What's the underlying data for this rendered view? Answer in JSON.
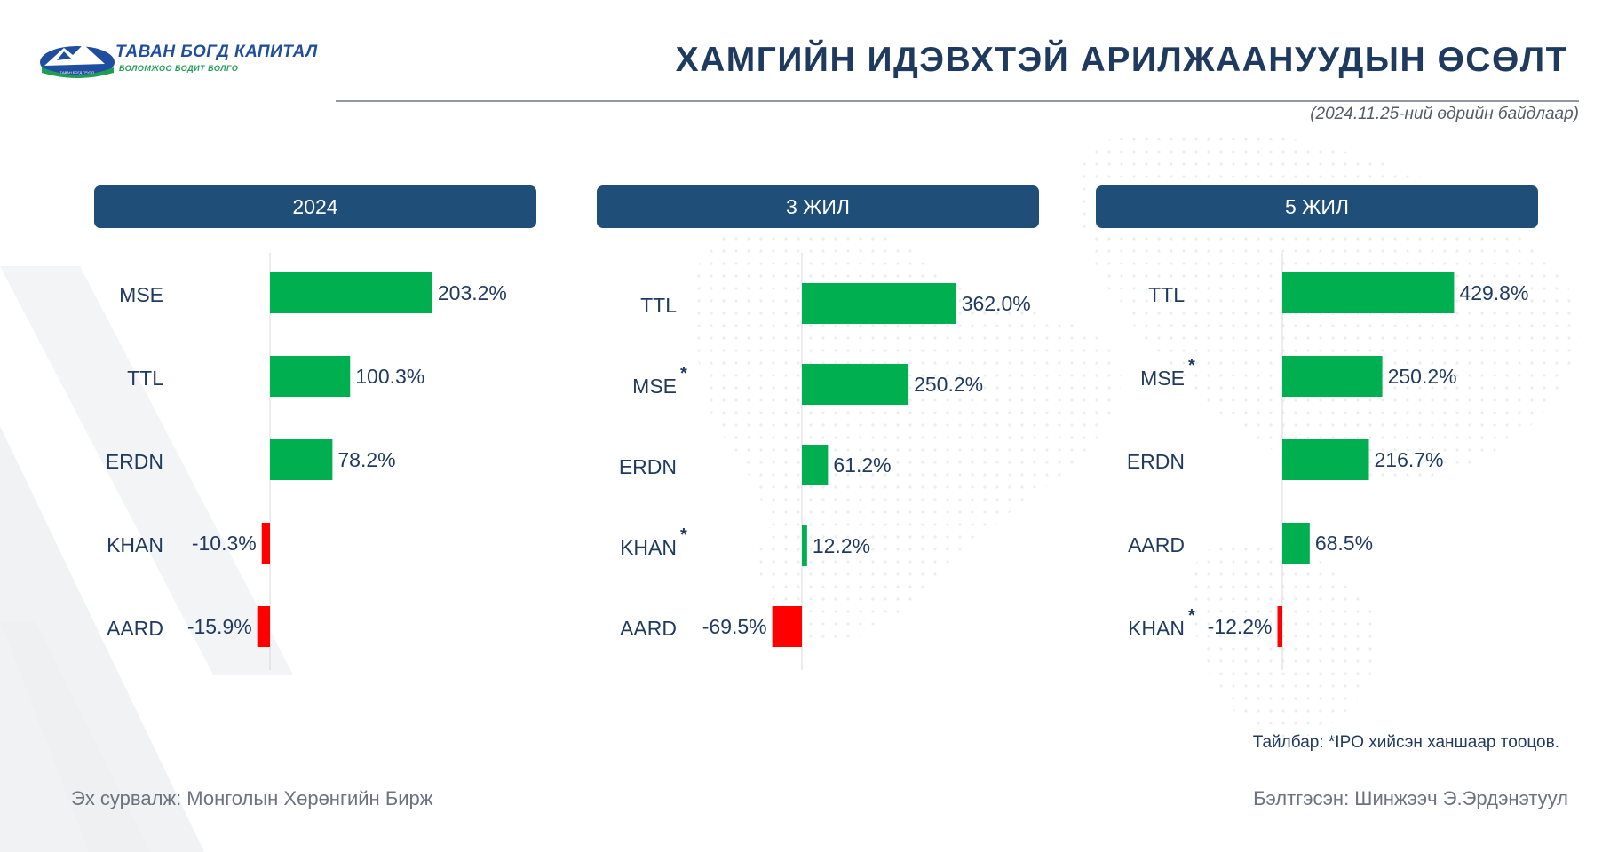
{
  "logo": {
    "brand": "ТАВАН БОГД КАПИТАЛ",
    "tagline": "БОЛОМЖОО БОДИТ БОЛГО",
    "mini_text": "ТАВАН БОГД ГРУПП"
  },
  "title": "ХАМГИЙН ИДЭВХТЭЙ АРИЛЖААНУУДЫН ӨСӨЛТ",
  "as_of": "(2024.11.25-ний өдрийн байдлаар)",
  "colors": {
    "positive": "#00b050",
    "negative": "#ff0000",
    "header": "#1f4e79",
    "text": "#1f3a5f"
  },
  "chart_data": [
    {
      "type": "bar",
      "title": "2024",
      "orientation": "horizontal",
      "categories": [
        "MSE",
        "TTL",
        "ERDN",
        "KHAN",
        "AARD"
      ],
      "asterisk": [
        false,
        false,
        false,
        false,
        false
      ],
      "values": [
        203.2,
        100.3,
        78.2,
        -10.3,
        -15.9
      ],
      "labels": [
        "203.2%",
        "100.3%",
        "78.2%",
        "-10.3%",
        "-15.9%"
      ],
      "unit": "%"
    },
    {
      "type": "bar",
      "title": "3 ЖИЛ",
      "orientation": "horizontal",
      "categories": [
        "TTL",
        "MSE",
        "ERDN",
        "KHAN",
        "AARD"
      ],
      "asterisk": [
        false,
        true,
        false,
        true,
        false
      ],
      "values": [
        362.0,
        250.2,
        61.2,
        12.2,
        -69.5
      ],
      "labels": [
        "362.0%",
        "250.2%",
        "61.2%",
        "12.2%",
        "-69.5%"
      ],
      "unit": "%"
    },
    {
      "type": "bar",
      "title": "5 ЖИЛ",
      "orientation": "horizontal",
      "categories": [
        "TTL",
        "MSE",
        "ERDN",
        "AARD",
        "KHAN"
      ],
      "asterisk": [
        false,
        true,
        false,
        false,
        true
      ],
      "values": [
        429.8,
        250.2,
        216.7,
        68.5,
        -12.2
      ],
      "labels": [
        "429.8%",
        "250.2%",
        "216.7%",
        "68.5%",
        "-12.2%"
      ],
      "unit": "%"
    }
  ],
  "note": "Тайлбар: *IPO хийсэн ханшаар тооцов.",
  "footer": {
    "source_label": "Эх сурвалж:",
    "source_value": "Монголын Хөрөнгийн Бирж",
    "prepared": "Бэлтгэсэн: Шинжээч Э.Эрдэнэтуул"
  }
}
